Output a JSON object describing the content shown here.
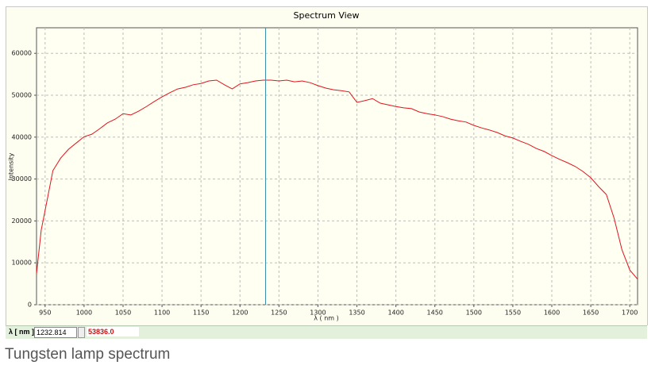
{
  "chart_data": {
    "type": "line",
    "title": "Spectrum View",
    "x_label": "λ ( nm )",
    "y_label": "Intensity",
    "x": [
      939,
      945,
      950,
      960,
      970,
      980,
      990,
      1000,
      1010,
      1020,
      1030,
      1040,
      1050,
      1060,
      1070,
      1080,
      1090,
      1100,
      1110,
      1120,
      1130,
      1140,
      1150,
      1160,
      1170,
      1180,
      1190,
      1200,
      1210,
      1220,
      1230,
      1240,
      1250,
      1260,
      1270,
      1280,
      1290,
      1300,
      1310,
      1320,
      1330,
      1340,
      1350,
      1360,
      1370,
      1380,
      1390,
      1400,
      1410,
      1420,
      1430,
      1440,
      1450,
      1460,
      1470,
      1480,
      1490,
      1500,
      1510,
      1520,
      1530,
      1540,
      1550,
      1560,
      1570,
      1580,
      1590,
      1600,
      1610,
      1620,
      1630,
      1640,
      1650,
      1660,
      1670,
      1680,
      1690,
      1700,
      1710
    ],
    "series": [
      {
        "color": "#e0141e",
        "values": [
          7400,
          17800,
          22500,
          32000,
          35000,
          37100,
          38600,
          40100,
          40700,
          42000,
          43400,
          44300,
          45600,
          45300,
          46200,
          47300,
          48500,
          49600,
          50600,
          51500,
          51900,
          52500,
          52800,
          53400,
          53600,
          52500,
          51500,
          52700,
          53000,
          53400,
          53600,
          53600,
          53400,
          53600,
          53200,
          53400,
          53000,
          52300,
          51700,
          51300,
          51100,
          50800,
          48300,
          48700,
          49200,
          48100,
          47700,
          47300,
          47000,
          46800,
          46000,
          45600,
          45300,
          44900,
          44300,
          43900,
          43600,
          42800,
          42200,
          41700,
          41100,
          40300,
          39800,
          39000,
          38300,
          37300,
          36600,
          35600,
          34700,
          33900,
          33000,
          31800,
          30300,
          28200,
          26300,
          20600,
          13100,
          8300,
          6100
        ]
      }
    ],
    "xlim": [
      939,
      1710
    ],
    "ylim": [
      0,
      66100
    ],
    "xticks": [
      950,
      1000,
      1050,
      1100,
      1150,
      1200,
      1250,
      1300,
      1350,
      1400,
      1450,
      1500,
      1550,
      1600,
      1650,
      1700
    ],
    "yticks": [
      0,
      10000,
      20000,
      30000,
      40000,
      50000,
      60000
    ],
    "grid": true,
    "cursor": {
      "x": 1232.814,
      "color": "#3a8fa8"
    }
  },
  "status_bar": {
    "label": "λ [ nm ]",
    "intensity": "53836.0"
  },
  "caption": "Tungsten lamp spectrum"
}
